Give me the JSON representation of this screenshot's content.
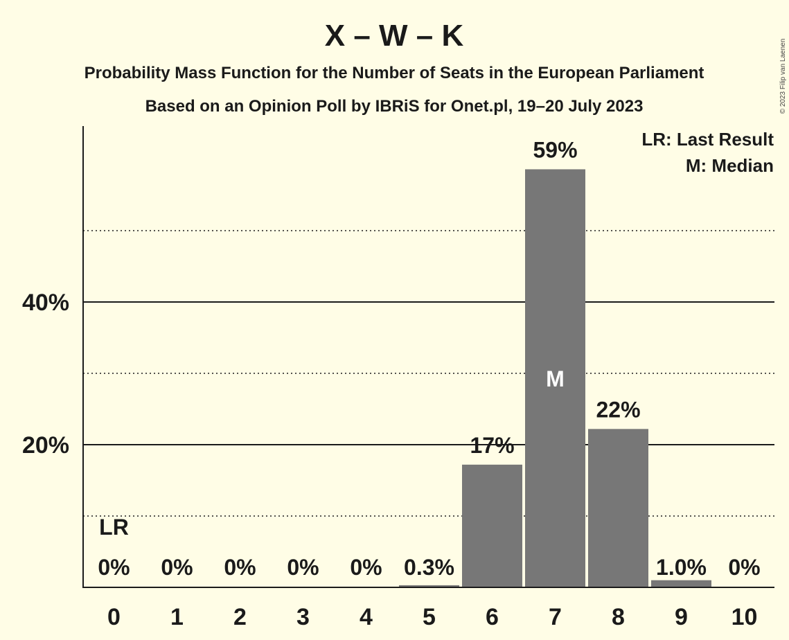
{
  "copyright": "© 2023 Filip van Laenen",
  "chart_data": {
    "type": "bar",
    "title": "X – W – K",
    "subtitle_1": "Probability Mass Function for the Number of Seats in the European Parliament",
    "subtitle_2": "Based on an Opinion Poll by IBRiS for Onet.pl, 19–20 July 2023",
    "categories": [
      "0",
      "1",
      "2",
      "3",
      "4",
      "5",
      "6",
      "7",
      "8",
      "9",
      "10"
    ],
    "values": [
      0,
      0,
      0,
      0,
      0,
      0.3,
      17.2,
      58.6,
      22.2,
      1.0,
      0
    ],
    "value_labels": [
      "0%",
      "0%",
      "0%",
      "0%",
      "0%",
      "0.3%",
      "17%",
      "59%",
      "22%",
      "1.0%",
      "0%"
    ],
    "ylim": [
      0,
      64.5
    ],
    "y_ticks_major": [
      20,
      40
    ],
    "y_tick_labels": [
      "20%",
      "40%"
    ],
    "y_ticks_minor": [
      10,
      30,
      50
    ],
    "last_result_index": 0,
    "last_result_marker": "LR",
    "median_index": 7,
    "median_marker": "M",
    "legend": [
      "LR: Last Result",
      "M: Median"
    ],
    "bar_color": "#777777",
    "background_color": "#fffde6"
  }
}
